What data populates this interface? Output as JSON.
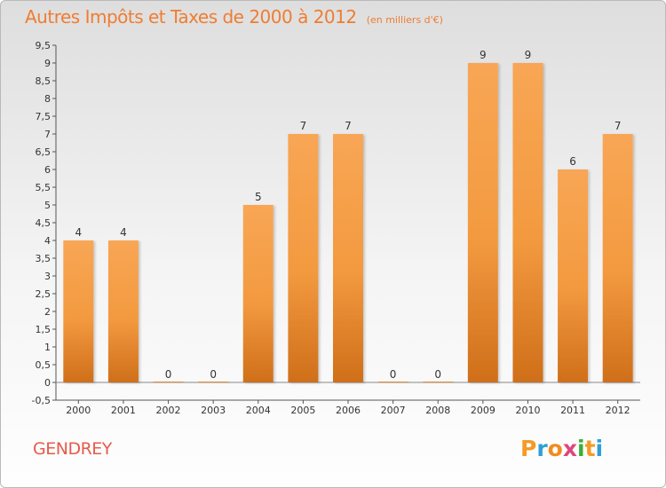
{
  "chart_data": {
    "type": "bar",
    "title": "Autres Impôts et Taxes de 2000 à 2012",
    "subtitle": "(en milliers d'€)",
    "categories": [
      "2000",
      "2001",
      "2002",
      "2003",
      "2004",
      "2005",
      "2006",
      "2007",
      "2008",
      "2009",
      "2010",
      "2011",
      "2012"
    ],
    "values": [
      4,
      4,
      0,
      0,
      5,
      7,
      7,
      0,
      0,
      9,
      9,
      6,
      7
    ],
    "value_labels": [
      "4",
      "4",
      "0",
      "0",
      "5",
      "7",
      "7",
      "0",
      "0",
      "9",
      "9",
      "6",
      "7"
    ],
    "ylim": [
      -0.5,
      9.5
    ],
    "y_ticks": [
      -0.5,
      0,
      0.5,
      1,
      1.5,
      2,
      2.5,
      3,
      3.5,
      4,
      4.5,
      5,
      5.5,
      6,
      6.5,
      7,
      7.5,
      8,
      8.5,
      9,
      9.5
    ],
    "y_tick_labels": [
      "-0,5",
      "0",
      "0,5",
      "1",
      "1,5",
      "2",
      "2,5",
      "3",
      "3,5",
      "4",
      "4,5",
      "5",
      "5,5",
      "6",
      "6,5",
      "7",
      "7,5",
      "8",
      "8,5",
      "9",
      "9,5"
    ],
    "grid": false,
    "bar_color": "#f39a40"
  },
  "footer": {
    "commune": "GENDREY",
    "brand": [
      "P",
      "r",
      "o",
      "x",
      "i",
      "t",
      "i"
    ],
    "brand_colors": [
      "#f59a25",
      "#2e9fd6",
      "#f08c1e",
      "#e0457b",
      "#3aae3a",
      "#f59a25",
      "#2e9fd6"
    ]
  }
}
